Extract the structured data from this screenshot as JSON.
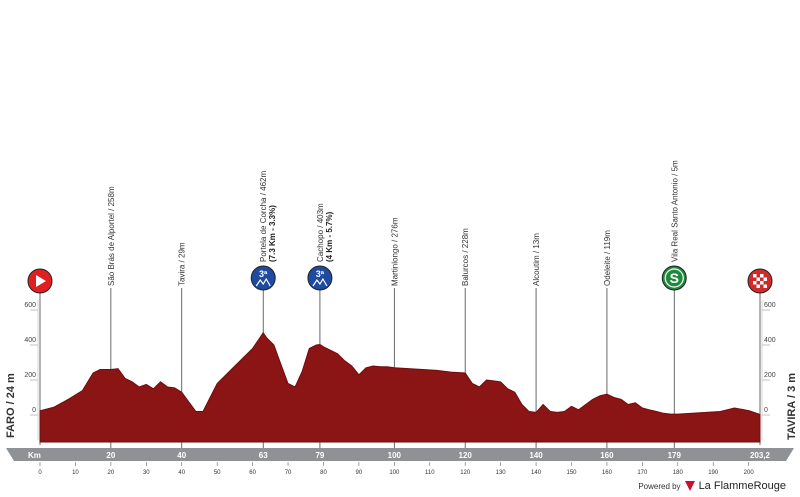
{
  "chart_data": {
    "type": "area",
    "title": "",
    "start_label": "FARO / 24 m",
    "finish_label": "TAVIRA / 3 m",
    "distance_axis_label": "Km",
    "total_distance_label": "203,2",
    "xlim": [
      0,
      203.2
    ],
    "ylim": [
      -150,
      700
    ],
    "y_ticks": [
      0,
      200,
      400,
      600
    ],
    "x_ticks": [
      0,
      10,
      20,
      30,
      40,
      50,
      60,
      70,
      80,
      90,
      100,
      110,
      120,
      130,
      140,
      150,
      160,
      170,
      180,
      190,
      200
    ],
    "grid": false,
    "profile": {
      "x": [
        0,
        4,
        8,
        12,
        15,
        17,
        20,
        22,
        24,
        26,
        28,
        30,
        32,
        34,
        36,
        38,
        40,
        42,
        44,
        46,
        48,
        50,
        52,
        54,
        56,
        58,
        60,
        62,
        63,
        64,
        66,
        68,
        70,
        72,
        74,
        76,
        78,
        79,
        80,
        82,
        84,
        86,
        88,
        90,
        92,
        94,
        96,
        98,
        100,
        104,
        108,
        112,
        116,
        120,
        122,
        124,
        126,
        128,
        130,
        132,
        134,
        136,
        138,
        140,
        142,
        144,
        146,
        148,
        150,
        152,
        154,
        156,
        158,
        160,
        162,
        164,
        166,
        168,
        170,
        172,
        174,
        176,
        178,
        180,
        184,
        188,
        192,
        196,
        200,
        203.2
      ],
      "y": [
        24,
        45,
        90,
        140,
        240,
        260,
        260,
        265,
        210,
        190,
        160,
        175,
        150,
        190,
        160,
        155,
        130,
        75,
        20,
        20,
        100,
        180,
        220,
        260,
        300,
        340,
        380,
        440,
        470,
        440,
        400,
        290,
        180,
        160,
        250,
        380,
        400,
        403,
        390,
        370,
        350,
        310,
        280,
        230,
        270,
        280,
        276,
        276,
        270,
        265,
        260,
        255,
        245,
        240,
        180,
        160,
        200,
        195,
        190,
        150,
        130,
        60,
        20,
        15,
        60,
        20,
        15,
        20,
        50,
        30,
        60,
        90,
        110,
        119,
        100,
        90,
        60,
        70,
        40,
        30,
        20,
        10,
        5,
        5,
        10,
        15,
        20,
        40,
        25,
        3
      ]
    },
    "km_markers": [
      "20",
      "40",
      "63",
      "79",
      "100",
      "120",
      "140",
      "160",
      "179",
      "203,2"
    ],
    "waypoints": [
      {
        "km": 20,
        "name": "São Brás de Alportel / 258m",
        "detail": "",
        "badge": ""
      },
      {
        "km": 40,
        "name": "Tavira / 29m",
        "detail": "",
        "badge": ""
      },
      {
        "km": 63,
        "name": "Portela de Corcha / 462m",
        "detail": "(7.3 Km - 3.3%)",
        "badge": "3ª"
      },
      {
        "km": 79,
        "name": "Cachopo / 403m",
        "detail": "(4 Km - 5.7%)",
        "badge": "3ª"
      },
      {
        "km": 100,
        "name": "Martinlongo / 276m",
        "detail": "",
        "badge": ""
      },
      {
        "km": 120,
        "name": "Balurcos / 228m",
        "detail": "",
        "badge": ""
      },
      {
        "km": 140,
        "name": "Alcoutim / 13m",
        "detail": "",
        "badge": ""
      },
      {
        "km": 160,
        "name": "Odeleite / 119m",
        "detail": "",
        "badge": ""
      },
      {
        "km": 179,
        "name": "Vila Real Santo Antonio / 5m",
        "detail": "",
        "badge": "S"
      }
    ],
    "colors": {
      "fill": "#8b1414",
      "fill_dark": "#6e0e0e",
      "climb_badge": "#1e4aa0",
      "sprint_badge": "#1e8a3c",
      "start_badge": "#e02020",
      "km_bar": "#8e9297"
    }
  },
  "footer": {
    "powered_by": "Powered by",
    "brand": "La FlammeRouge"
  }
}
